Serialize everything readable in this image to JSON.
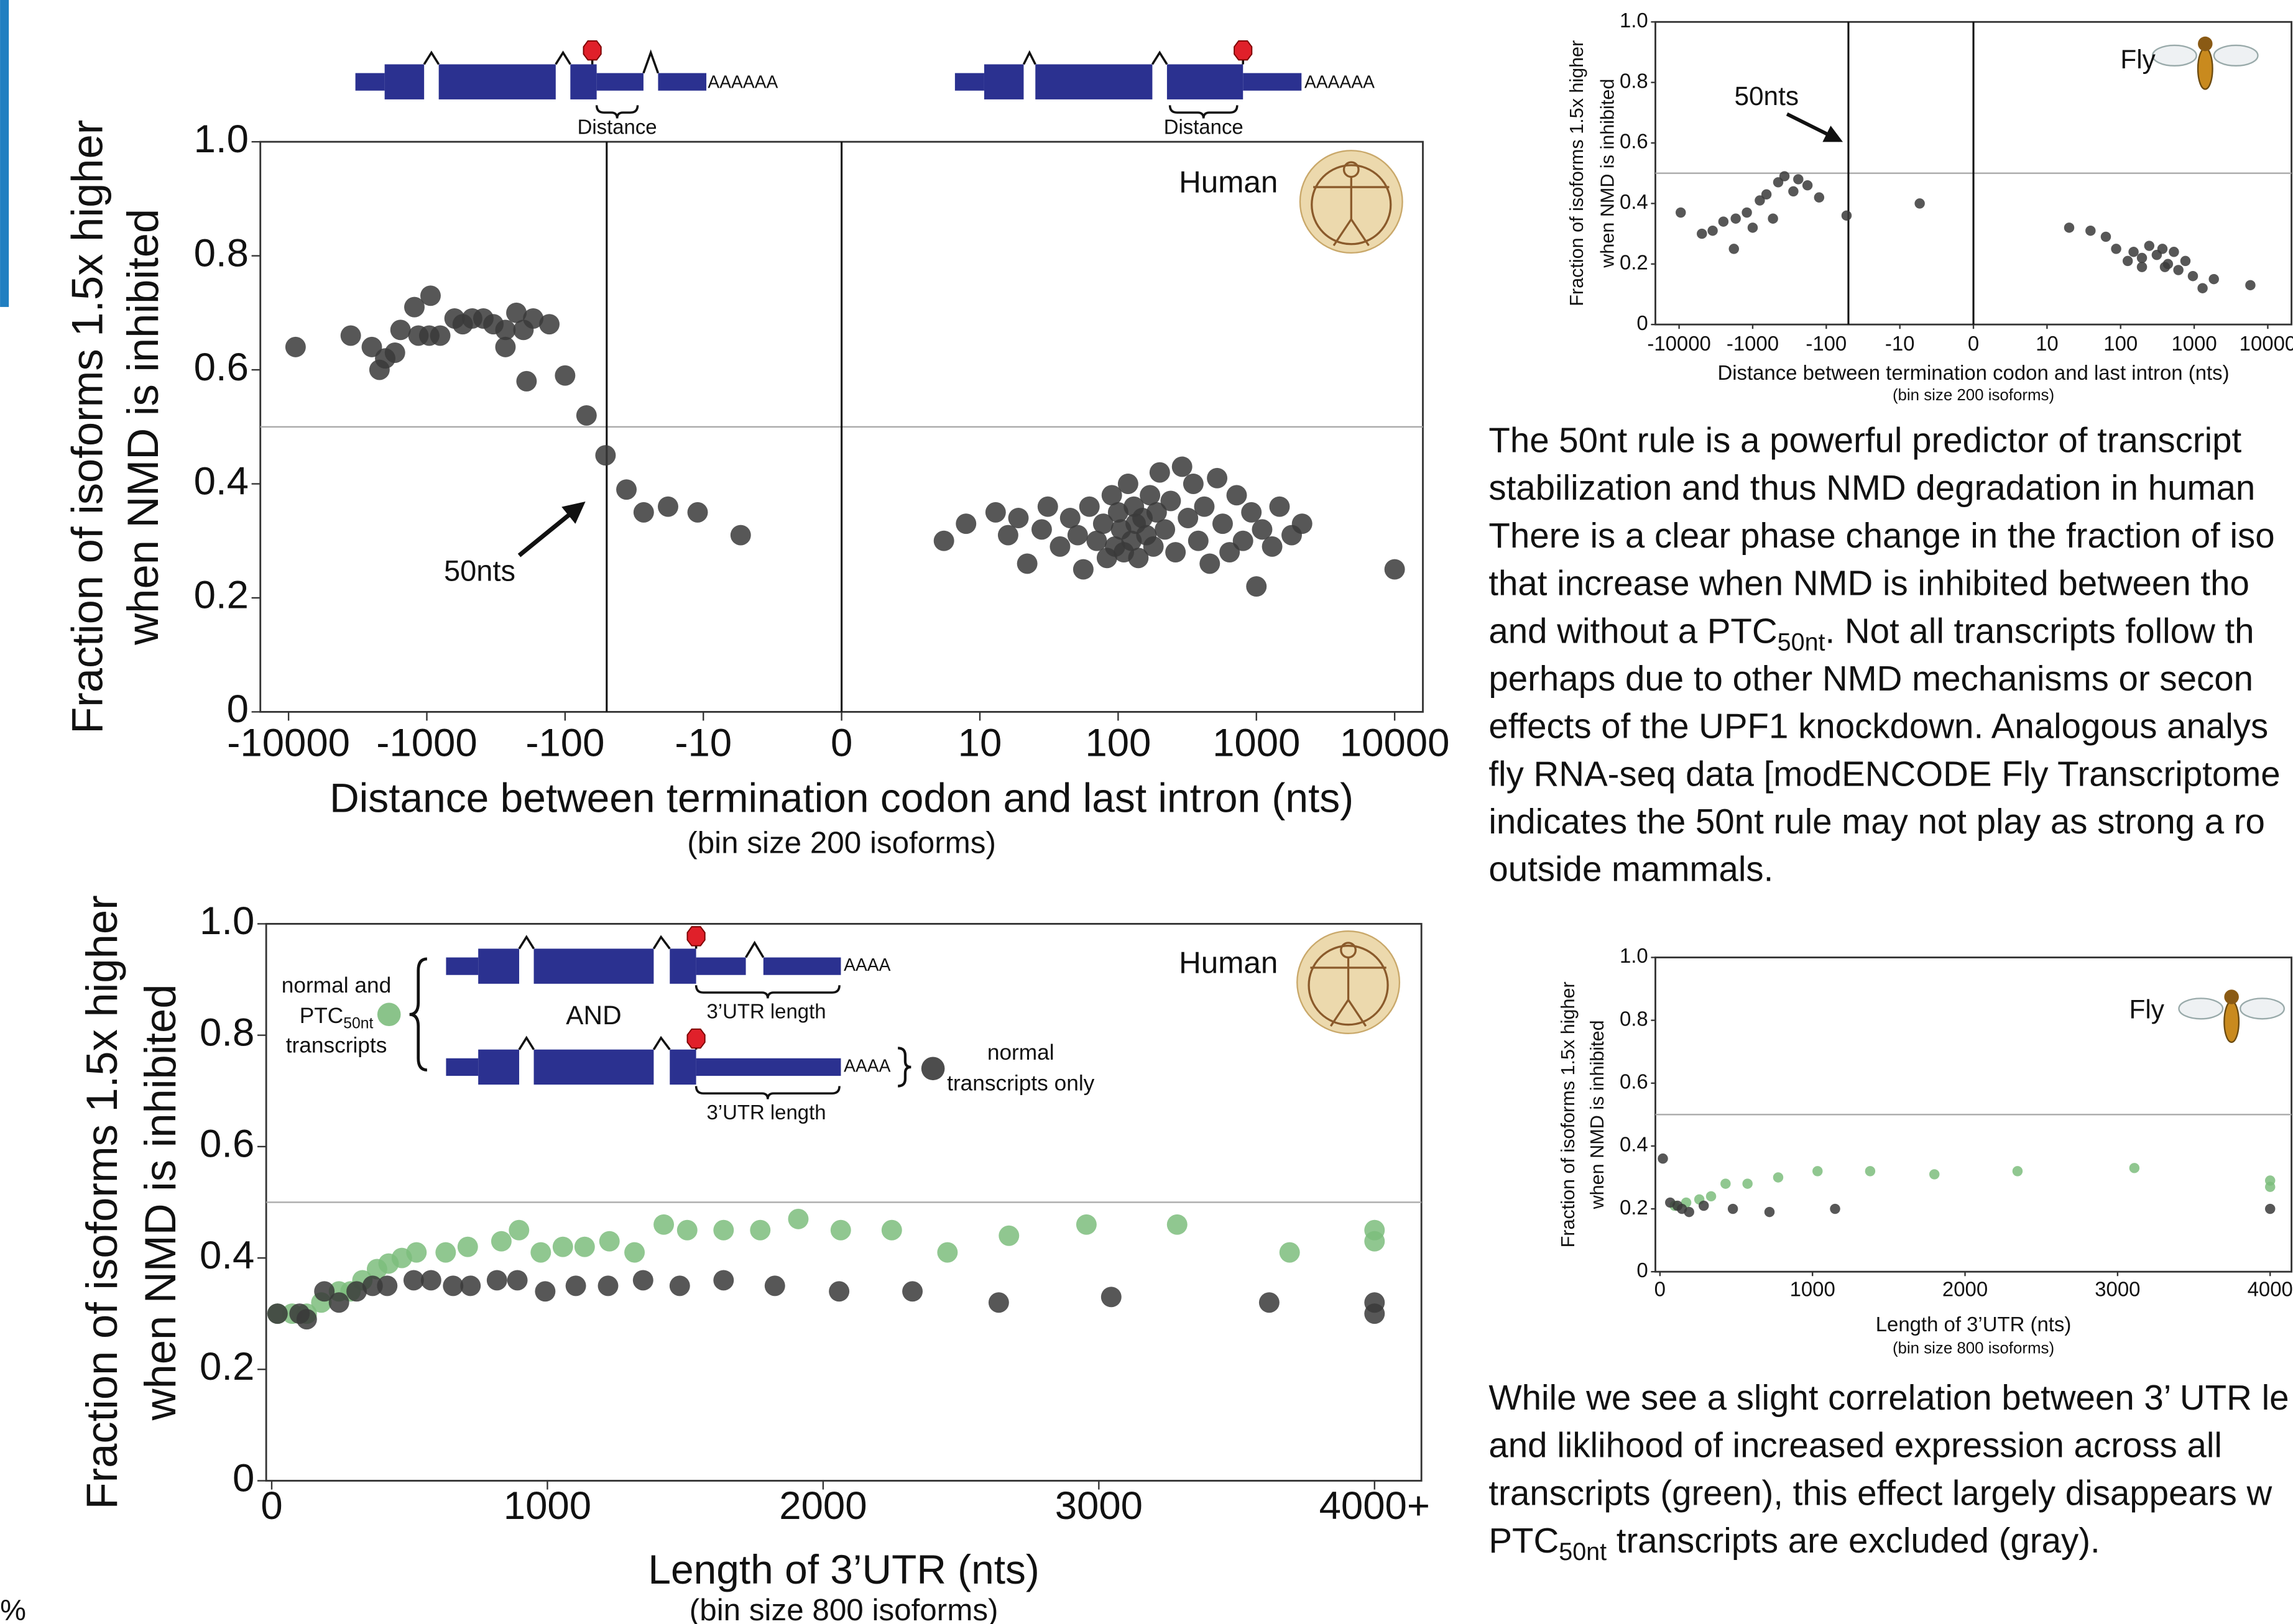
{
  "chart_data": [
    {
      "type": "scatter",
      "xscale": "symlog",
      "ylabel": [
        "Fraction of isoforms 1.5x higher",
        "when NMD is inhibited"
      ],
      "xlabel": "Distance between termination codon and last intron (nts)",
      "subtitle": "(bin size 200 isoforms)",
      "xlim": [
        -16000,
        16000
      ],
      "ylim": [
        0,
        1
      ],
      "xticks": [
        -10000,
        -1000,
        -100,
        -10,
        0,
        10,
        100,
        1000,
        10000
      ],
      "yticks": [
        0,
        0.2,
        0.4,
        0.6,
        0.8,
        {
          "value": 1,
          "label": "1.0"
        }
      ],
      "vlines": [
        -50,
        0
      ],
      "hlines": [
        0.5
      ],
      "annotations": {
        "species": "Human",
        "marker": "50nts",
        "distance": "Distance",
        "polya": "AAAAAA"
      },
      "series": [
        {
          "color": "#3a3a3a",
          "x": [
            -8900,
            -3550,
            -2500,
            -2000,
            -2200,
            -1700,
            -1550,
            -1230,
            -940,
            -1150,
            -800,
            -960,
            -630,
            -550,
            -470,
            -390,
            -330,
            -270,
            -225,
            -170,
            -200,
            -130,
            -270,
            -190,
            -100,
            -70,
            -51,
            -36,
            -27,
            -18,
            -11,
            -7.3,
            7.4,
            9,
            13,
            16,
            19,
            22,
            28,
            31,
            38,
            45,
            51,
            56,
            62,
            70,
            78,
            83,
            90,
            95,
            100,
            105,
            110,
            118,
            125,
            130,
            134,
            140,
            150,
            160,
            170,
            180,
            190,
            200,
            218,
            240,
            260,
            290,
            320,
            350,
            380,
            420,
            460,
            520,
            570,
            640,
            720,
            800,
            920,
            1000,
            1100,
            1300,
            1470,
            1800,
            2140,
            10000
          ],
          "values": [
            0.64,
            0.66,
            0.64,
            0.62,
            0.6,
            0.63,
            0.67,
            0.71,
            0.73,
            0.66,
            0.66,
            0.66,
            0.69,
            0.68,
            0.69,
            0.69,
            0.68,
            0.67,
            0.7,
            0.69,
            0.67,
            0.68,
            0.64,
            0.58,
            0.59,
            0.52,
            0.45,
            0.39,
            0.35,
            0.36,
            0.35,
            0.31,
            0.3,
            0.33,
            0.35,
            0.31,
            0.34,
            0.26,
            0.32,
            0.36,
            0.29,
            0.34,
            0.31,
            0.25,
            0.36,
            0.3,
            0.33,
            0.27,
            0.38,
            0.29,
            0.35,
            0.32,
            0.28,
            0.4,
            0.3,
            0.36,
            0.33,
            0.27,
            0.34,
            0.31,
            0.38,
            0.29,
            0.35,
            0.42,
            0.32,
            0.37,
            0.28,
            0.43,
            0.34,
            0.4,
            0.3,
            0.36,
            0.26,
            0.41,
            0.33,
            0.28,
            0.38,
            0.3,
            0.35,
            0.22,
            0.32,
            0.29,
            0.36,
            0.31,
            0.33,
            0.25
          ]
        }
      ]
    },
    {
      "type": "scatter",
      "xscale": "symlog",
      "ylabel": [
        "Fraction of isoforms 1.5x higher",
        "when NMD is inhibited"
      ],
      "xlabel": "Distance between termination codon and last intron (nts)",
      "subtitle": "(bin size 200 isoforms)",
      "xlim": [
        -21000,
        21000
      ],
      "ylim": [
        0,
        1
      ],
      "xticks": [
        -10000,
        -1000,
        -100,
        -10,
        0,
        10,
        100,
        1000,
        10000
      ],
      "yticks": [
        0,
        0.2,
        0.4,
        0.6,
        0.8,
        {
          "value": 1,
          "label": "1.0"
        }
      ],
      "vlines": [
        -50,
        0
      ],
      "hlines": [
        0.5
      ],
      "annotations": {
        "species": "Fly",
        "marker": "50nts"
      },
      "series": [
        {
          "color": "#3a3a3a",
          "x": [
            -9500,
            -4900,
            -3500,
            -2500,
            -1800,
            -1700,
            -1200,
            -1000,
            -800,
            -650,
            -530,
            -450,
            -370,
            -280,
            -240,
            -180,
            -125,
            -53,
            -7.3,
            20,
            39,
            63,
            87,
            125,
            150,
            195,
            245,
            310,
            370,
            440,
            530,
            610,
            760,
            960,
            1300,
            1850,
            5800,
            400,
            195
          ],
          "values": [
            0.37,
            0.3,
            0.31,
            0.34,
            0.25,
            0.35,
            0.37,
            0.32,
            0.41,
            0.43,
            0.35,
            0.47,
            0.49,
            0.44,
            0.48,
            0.46,
            0.42,
            0.36,
            0.4,
            0.32,
            0.31,
            0.29,
            0.25,
            0.21,
            0.24,
            0.22,
            0.26,
            0.23,
            0.25,
            0.2,
            0.24,
            0.18,
            0.21,
            0.16,
            0.12,
            0.15,
            0.13,
            0.19,
            0.19
          ]
        }
      ]
    },
    {
      "type": "scatter",
      "xscale": "linear",
      "ylabel": [
        "Fraction of isoforms 1.5x higher",
        "when NMD is inhibited"
      ],
      "xlabel": "Length of 3’UTR (nts)",
      "subtitle": "(bin size 800 isoforms)",
      "xlim": [
        -20,
        4170
      ],
      "ylim": [
        0,
        1
      ],
      "xticks": [
        0,
        1000,
        2000,
        3000,
        {
          "value": 4000,
          "label": "4000+"
        }
      ],
      "yticks": [
        0,
        0.2,
        0.4,
        0.6,
        0.8,
        {
          "value": 1,
          "label": "1.0"
        }
      ],
      "hlines": [
        0.5
      ],
      "annotations": {
        "species": "Human",
        "connector": "AND",
        "utr": "3’UTR length",
        "polya": "AAAA"
      },
      "series": [
        {
          "name": [
            "normal and",
            [
              "PTC",
              "50nt"
            ],
            "transcripts"
          ],
          "color": "#7dbd7d",
          "x": [
            21,
            74,
            127,
            180,
            244,
            286,
            329,
            382,
            424,
            472,
            525,
            631,
            711,
            833,
            897,
            976,
            1056,
            1135,
            1225,
            1316,
            1422,
            1507,
            1639,
            1772,
            1910,
            2064,
            2249,
            2451,
            2674,
            2955,
            3284,
            3692,
            4000,
            4000
          ],
          "values": [
            0.3,
            0.3,
            0.3,
            0.32,
            0.34,
            0.34,
            0.36,
            0.38,
            0.39,
            0.4,
            0.41,
            0.41,
            0.42,
            0.43,
            0.45,
            0.41,
            0.42,
            0.42,
            0.43,
            0.41,
            0.46,
            0.45,
            0.45,
            0.45,
            0.47,
            0.45,
            0.45,
            0.41,
            0.44,
            0.46,
            0.46,
            0.41,
            0.45,
            0.43
          ]
        },
        {
          "name": [
            "normal",
            "transcripts only"
          ],
          "color": "#3a3a3a",
          "x": [
            21,
            101,
            127,
            191,
            244,
            308,
            366,
            419,
            515,
            578,
            658,
            721,
            817,
            891,
            992,
            1103,
            1220,
            1347,
            1480,
            1639,
            1825,
            2058,
            2324,
            2637,
            3045,
            3618,
            4000,
            4000
          ],
          "values": [
            0.3,
            0.3,
            0.29,
            0.34,
            0.32,
            0.34,
            0.35,
            0.35,
            0.36,
            0.36,
            0.35,
            0.35,
            0.36,
            0.36,
            0.34,
            0.35,
            0.35,
            0.36,
            0.35,
            0.36,
            0.35,
            0.34,
            0.34,
            0.32,
            0.33,
            0.32,
            0.32,
            0.3
          ]
        }
      ]
    },
    {
      "type": "scatter",
      "xscale": "linear",
      "ylabel": [
        "Fraction of isoforms 1.5x higher",
        "when NMD is inhibited"
      ],
      "xlabel": "Length of 3’UTR (nts)",
      "subtitle": "(bin size 800 isoforms)",
      "xlim": [
        -30,
        4140
      ],
      "ylim": [
        0,
        1
      ],
      "xticks": [
        0,
        1000,
        2000,
        3000,
        4000
      ],
      "yticks": [
        0,
        0.2,
        0.4,
        0.6,
        0.8,
        {
          "value": 1,
          "label": "1.0"
        }
      ],
      "hlines": [
        0.5
      ],
      "annotations": {
        "species": "Fly"
      },
      "series": [
        {
          "color": "#7dbd7d",
          "x": [
            96,
            172,
            258,
            335,
            430,
            574,
            775,
            1033,
            1378,
            1799,
            2344,
            3110,
            4000,
            4000
          ],
          "values": [
            0.21,
            0.22,
            0.23,
            0.24,
            0.28,
            0.28,
            0.3,
            0.32,
            0.32,
            0.31,
            0.32,
            0.33,
            0.29,
            0.27
          ]
        },
        {
          "color": "#3a3a3a",
          "x": [
            19,
            67,
            115,
            144,
            191,
            287,
            478,
            718,
            1148,
            4000
          ],
          "values": [
            0.36,
            0.22,
            0.21,
            0.2,
            0.19,
            0.21,
            0.2,
            0.19,
            0.2,
            0.2
          ]
        }
      ]
    }
  ],
  "text": {
    "paragraphs": [
      [
        "The 50nt rule is a powerful predictor of transcript",
        "stabilization and thus NMD degradation in human",
        "There is a clear phase change in the fraction of iso",
        "that increase when NMD is inhibited between tho",
        [
          "and without a PTC",
          "50nt",
          ".  Not all transcripts follow th"
        ],
        "perhaps due to other NMD mechanisms or secon",
        "effects of the UPF1 knockdown. Analogous analys",
        "fly RNA-seq data [modENCODE Fly Transcriptome",
        "indicates the 50nt rule may not play as strong a ro",
        "outside mammals."
      ],
      [
        "While we see a slight correlation between 3’ UTR le",
        "and liklihood of increased expression across all",
        "transcripts (green), this effect largely disappears w",
        [
          "PTC",
          "50nt",
          " transcripts are excluded (gray)."
        ]
      ]
    ],
    "footer": "%"
  }
}
